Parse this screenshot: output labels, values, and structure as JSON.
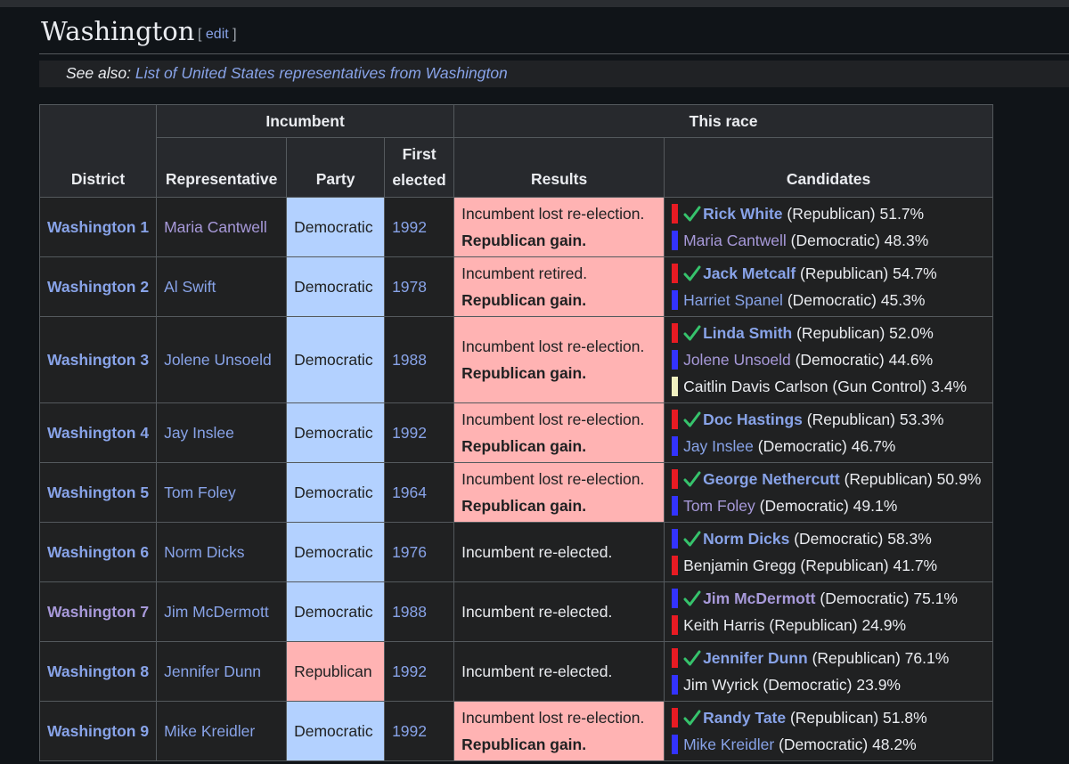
{
  "section": {
    "title": "Washington",
    "edit_open": "[",
    "edit_label": "edit",
    "edit_close": "]"
  },
  "see_also": {
    "prefix": "See also:",
    "link": "List of United States representatives from Washington"
  },
  "table": {
    "headers": {
      "district": "District",
      "incumbent": "Incumbent",
      "this_race": "This race",
      "representative": "Representative",
      "party": "Party",
      "first_elected_1": "First",
      "first_elected_2": "elected",
      "results": "Results",
      "candidates": "Candidates"
    },
    "rows": [
      {
        "district": "Washington 1",
        "representative": "Maria Cantwell",
        "party": "Democratic",
        "first_elected": "1992",
        "result": "Incumbent lost re-election.",
        "gain": "Republican gain.",
        "candidates": [
          {
            "name": "Rick White",
            "rest": " (Republican) 51.7%",
            "party": "r",
            "winner": true
          },
          {
            "name": "Maria Cantwell",
            "rest": " (Democratic) 48.3%",
            "party": "d",
            "winner": false
          }
        ]
      },
      {
        "district": "Washington 2",
        "representative": "Al Swift",
        "party": "Democratic",
        "first_elected": "1978",
        "result": "Incumbent retired.",
        "gain": "Republican gain.",
        "candidates": [
          {
            "name": "Jack Metcalf",
            "rest": " (Republican) 54.7%",
            "party": "r",
            "winner": true
          },
          {
            "name": "Harriet Spanel",
            "rest": " (Democratic) 45.3%",
            "party": "d",
            "winner": false
          }
        ]
      },
      {
        "district": "Washington 3",
        "representative": "Jolene Unsoeld",
        "party": "Democratic",
        "first_elected": "1988",
        "result": "Incumbent lost re-election.",
        "gain": "Republican gain.",
        "candidates": [
          {
            "name": "Linda Smith",
            "rest": " (Republican) 52.0%",
            "party": "r",
            "winner": true
          },
          {
            "name": "Jolene Unsoeld",
            "rest": " (Democratic) 44.6%",
            "party": "d",
            "winner": false
          },
          {
            "name": "Caitlin Davis Carlson",
            "rest": " (Gun Control) 3.4%",
            "party": "g",
            "winner": false,
            "plain": true
          }
        ]
      },
      {
        "district": "Washington 4",
        "representative": "Jay Inslee",
        "party": "Democratic",
        "first_elected": "1992",
        "result": "Incumbent lost re-election.",
        "gain": "Republican gain.",
        "candidates": [
          {
            "name": "Doc Hastings",
            "rest": " (Republican) 53.3%",
            "party": "r",
            "winner": true
          },
          {
            "name": "Jay Inslee",
            "rest": " (Democratic) 46.7%",
            "party": "d",
            "winner": false
          }
        ]
      },
      {
        "district": "Washington 5",
        "representative": "Tom Foley",
        "party": "Democratic",
        "first_elected": "1964",
        "result": "Incumbent lost re-election.",
        "gain": "Republican gain.",
        "candidates": [
          {
            "name": "George Nethercutt",
            "rest": " (Republican) 50.9%",
            "party": "r",
            "winner": true
          },
          {
            "name": "Tom Foley",
            "rest": " (Democratic) 49.1%",
            "party": "d",
            "winner": false
          }
        ]
      },
      {
        "district": "Washington 6",
        "representative": "Norm Dicks",
        "party": "Democratic",
        "first_elected": "1976",
        "result": "Incumbent re-elected.",
        "gain": "",
        "candidates": [
          {
            "name": "Norm Dicks",
            "rest": " (Democratic) 58.3%",
            "party": "d",
            "winner": true
          },
          {
            "name": "Benjamin Gregg",
            "rest": " (Republican) 41.7%",
            "party": "r",
            "winner": false,
            "plain": true
          }
        ]
      },
      {
        "district": "Washington 7",
        "representative": "Jim McDermott",
        "party": "Democratic",
        "first_elected": "1988",
        "result": "Incumbent re-elected.",
        "gain": "",
        "candidates": [
          {
            "name": "Jim McDermott",
            "rest": " (Democratic) 75.1%",
            "party": "d",
            "winner": true
          },
          {
            "name": "Keith Harris",
            "rest": " (Republican) 24.9%",
            "party": "r",
            "winner": false,
            "plain": true
          }
        ]
      },
      {
        "district": "Washington 8",
        "representative": "Jennifer Dunn",
        "party": "Republican",
        "first_elected": "1992",
        "result": "Incumbent re-elected.",
        "gain": "",
        "candidates": [
          {
            "name": "Jennifer Dunn",
            "rest": " (Republican) 76.1%",
            "party": "r",
            "winner": true
          },
          {
            "name": "Jim Wyrick",
            "rest": " (Democratic) 23.9%",
            "party": "d",
            "winner": false,
            "plain": true
          }
        ]
      },
      {
        "district": "Washington 9",
        "representative": "Mike Kreidler",
        "party": "Democratic",
        "first_elected": "1992",
        "result": "Incumbent lost re-election.",
        "gain": "Republican gain.",
        "candidates": [
          {
            "name": "Randy Tate",
            "rest": " (Republican) 51.8%",
            "party": "r",
            "winner": true
          },
          {
            "name": "Mike Kreidler",
            "rest": " (Democratic) 48.2%",
            "party": "d",
            "winner": false
          }
        ]
      }
    ]
  },
  "colors": {
    "background": "#101418",
    "link": "#88a3e8",
    "visited_link": "#a799d9",
    "democratic_cell": "#b3d1ff",
    "republican_cell": "#ffb3b3",
    "republican_swatch": "#e81b23",
    "democratic_swatch": "#3333ff",
    "gun_control_swatch": "#f0f0c0",
    "check": "#36c36c"
  }
}
